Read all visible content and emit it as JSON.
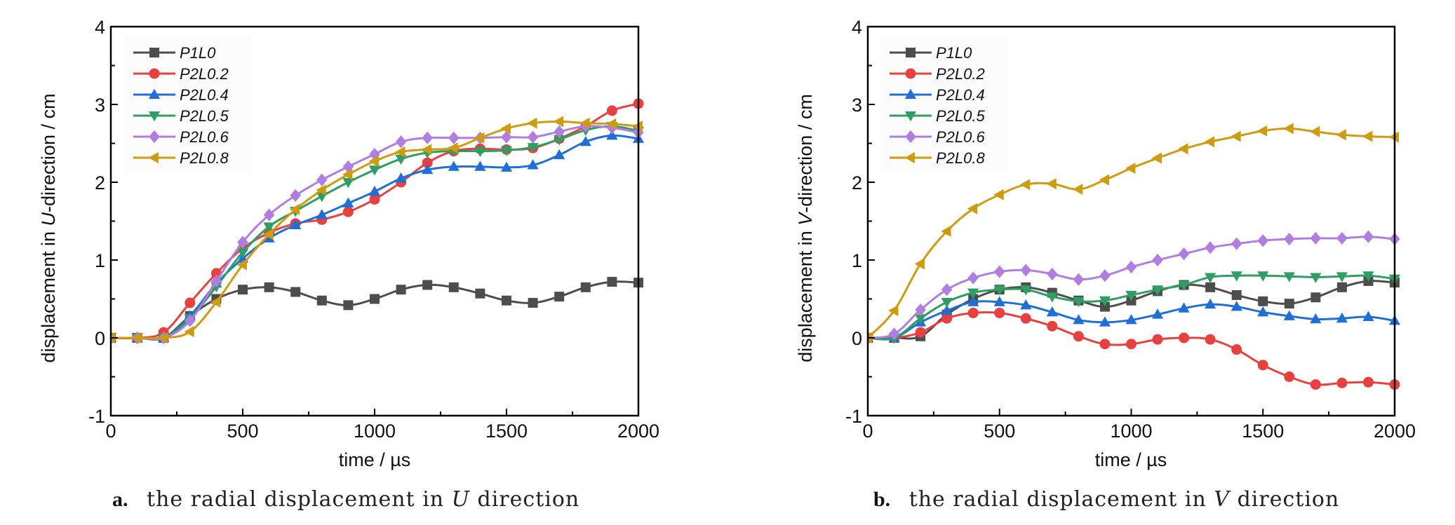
{
  "chart_data": [
    {
      "id": "a",
      "type": "line",
      "caption_letter": "a.",
      "caption": "the radial displacement in U direction",
      "ylabel": "displacement in U-direction / cm",
      "xlabel": "time / µs",
      "xlim": [
        0,
        2000
      ],
      "ylim": [
        -1,
        4
      ],
      "xticks": [
        0,
        500,
        1000,
        1500,
        2000
      ],
      "yticks": [
        -1,
        0,
        1,
        2,
        3,
        4
      ],
      "grid": false,
      "legend_position": "top-left",
      "x": [
        0,
        100,
        200,
        300,
        400,
        500,
        600,
        700,
        800,
        900,
        1000,
        1100,
        1200,
        1300,
        1400,
        1500,
        1600,
        1700,
        1800,
        1900,
        2000
      ],
      "series": [
        {
          "name": "P1L0",
          "color": "#4d4d4d",
          "marker": "square",
          "values": [
            0,
            0,
            0,
            0.28,
            0.5,
            0.62,
            0.65,
            0.59,
            0.48,
            0.42,
            0.5,
            0.62,
            0.68,
            0.65,
            0.57,
            0.48,
            0.45,
            0.53,
            0.65,
            0.72,
            0.71
          ]
        },
        {
          "name": "P2L0.2",
          "color": "#e8403f",
          "marker": "circle",
          "values": [
            0,
            0,
            0.07,
            0.45,
            0.83,
            1.15,
            1.35,
            1.47,
            1.52,
            1.62,
            1.78,
            2.0,
            2.25,
            2.4,
            2.43,
            2.42,
            2.44,
            2.56,
            2.72,
            2.92,
            3.01
          ]
        },
        {
          "name": "P2L0.4",
          "color": "#1f6fd6",
          "marker": "triangle-up",
          "values": [
            0,
            0,
            0,
            0.28,
            0.7,
            1.02,
            1.28,
            1.45,
            1.58,
            1.73,
            1.88,
            2.05,
            2.16,
            2.2,
            2.2,
            2.19,
            2.22,
            2.35,
            2.52,
            2.6,
            2.56
          ]
        },
        {
          "name": "P2L0.5",
          "color": "#2e9e62",
          "marker": "triangle-down",
          "values": [
            0,
            0,
            0,
            0.25,
            0.66,
            1.1,
            1.43,
            1.63,
            1.82,
            2.0,
            2.16,
            2.3,
            2.38,
            2.4,
            2.4,
            2.41,
            2.45,
            2.55,
            2.67,
            2.72,
            2.66
          ]
        },
        {
          "name": "P2L0.6",
          "color": "#b07ee0",
          "marker": "diamond",
          "values": [
            0,
            0,
            0,
            0.22,
            0.73,
            1.23,
            1.58,
            1.83,
            2.03,
            2.2,
            2.36,
            2.52,
            2.57,
            2.57,
            2.57,
            2.58,
            2.58,
            2.65,
            2.72,
            2.7,
            2.64
          ]
        },
        {
          "name": "P2L0.8",
          "color": "#cf9b10",
          "marker": "triangle-left",
          "values": [
            0,
            0,
            0,
            0.08,
            0.46,
            0.94,
            1.33,
            1.65,
            1.9,
            2.1,
            2.27,
            2.39,
            2.42,
            2.44,
            2.57,
            2.69,
            2.76,
            2.78,
            2.76,
            2.75,
            2.72
          ]
        }
      ]
    },
    {
      "id": "b",
      "type": "line",
      "caption_letter": "b.",
      "caption": "the radial displacement in V direction",
      "ylabel": "displacement in V-direction / cm",
      "xlabel": "time / µs",
      "xlim": [
        0,
        2000
      ],
      "ylim": [
        -1,
        4
      ],
      "xticks": [
        0,
        500,
        1000,
        1500,
        2000
      ],
      "yticks": [
        -1,
        0,
        1,
        2,
        3,
        4
      ],
      "grid": false,
      "legend_position": "top-left",
      "x": [
        0,
        100,
        200,
        300,
        400,
        500,
        600,
        700,
        800,
        900,
        1000,
        1100,
        1200,
        1300,
        1400,
        1500,
        1600,
        1700,
        1800,
        1900,
        2000
      ],
      "series": [
        {
          "name": "P1L0",
          "color": "#4d4d4d",
          "marker": "square",
          "values": [
            0,
            0,
            0.02,
            0.3,
            0.5,
            0.62,
            0.65,
            0.58,
            0.48,
            0.4,
            0.48,
            0.6,
            0.68,
            0.65,
            0.55,
            0.47,
            0.44,
            0.52,
            0.65,
            0.73,
            0.71
          ]
        },
        {
          "name": "P2L0.2",
          "color": "#e8403f",
          "marker": "circle",
          "values": [
            0,
            0,
            0.07,
            0.25,
            0.32,
            0.32,
            0.25,
            0.15,
            0.02,
            -0.08,
            -0.08,
            -0.02,
            0.0,
            -0.02,
            -0.15,
            -0.35,
            -0.5,
            -0.6,
            -0.58,
            -0.57,
            -0.6
          ]
        },
        {
          "name": "P2L0.4",
          "color": "#1f6fd6",
          "marker": "triangle-up",
          "values": [
            0,
            0,
            0.2,
            0.35,
            0.46,
            0.46,
            0.42,
            0.33,
            0.23,
            0.2,
            0.23,
            0.3,
            0.38,
            0.43,
            0.4,
            0.33,
            0.28,
            0.24,
            0.25,
            0.27,
            0.22
          ]
        },
        {
          "name": "P2L0.5",
          "color": "#2e9e62",
          "marker": "triangle-down",
          "values": [
            0,
            0,
            0.25,
            0.46,
            0.58,
            0.62,
            0.62,
            0.53,
            0.47,
            0.48,
            0.55,
            0.62,
            0.68,
            0.78,
            0.8,
            0.8,
            0.79,
            0.78,
            0.79,
            0.8,
            0.76
          ]
        },
        {
          "name": "P2L0.6",
          "color": "#b07ee0",
          "marker": "diamond",
          "values": [
            0,
            0.05,
            0.36,
            0.62,
            0.77,
            0.85,
            0.87,
            0.82,
            0.75,
            0.8,
            0.91,
            1.0,
            1.08,
            1.16,
            1.21,
            1.25,
            1.27,
            1.28,
            1.28,
            1.3,
            1.27
          ]
        },
        {
          "name": "P2L0.8",
          "color": "#cf9b10",
          "marker": "triangle-left",
          "values": [
            0,
            0.35,
            0.95,
            1.37,
            1.66,
            1.84,
            1.97,
            1.98,
            1.91,
            2.03,
            2.18,
            2.31,
            2.43,
            2.52,
            2.59,
            2.66,
            2.69,
            2.65,
            2.61,
            2.59,
            2.58
          ]
        }
      ]
    }
  ]
}
